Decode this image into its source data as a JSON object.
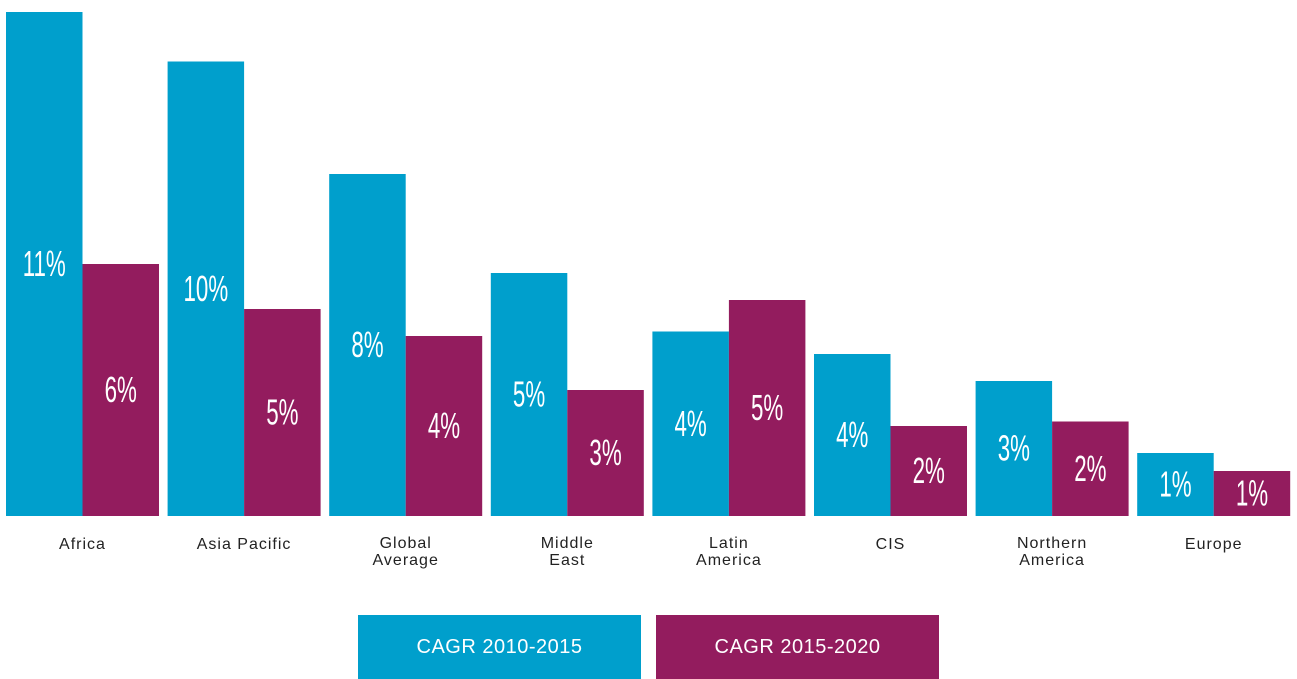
{
  "chart_data": {
    "type": "bar",
    "categories": [
      "Africa",
      "Asia Pacific",
      "Global\nAverage",
      "Middle\nEast",
      "Latin\nAmerica",
      "CIS",
      "Northern\nAmerica",
      "Europe"
    ],
    "series": [
      {
        "name": "CAGR 2010-2015",
        "color": "#009fcc",
        "values": [
          11.2,
          10.1,
          7.6,
          5.4,
          4.1,
          3.6,
          3.0,
          1.4
        ],
        "value_labels": [
          "11%",
          "10%",
          "8%",
          "5%",
          "4%",
          "4%",
          "3%",
          "1%"
        ]
      },
      {
        "name": "CAGR 2015-2020",
        "color": "#931c5e",
        "values": [
          5.6,
          4.6,
          4.0,
          2.8,
          4.8,
          2.0,
          2.1,
          1.0
        ],
        "value_labels": [
          "6%",
          "5%",
          "4%",
          "3%",
          "5%",
          "2%",
          "2%",
          "1%"
        ]
      }
    ]
  }
}
